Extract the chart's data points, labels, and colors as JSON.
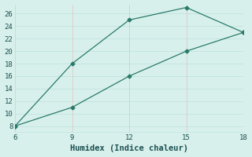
{
  "xlabel": "Humidex (Indice chaleur)",
  "x_upper": [
    6,
    9,
    12,
    15,
    18
  ],
  "y_upper": [
    8,
    18,
    25,
    27,
    23
  ],
  "x_lower": [
    6,
    9,
    12,
    15,
    18
  ],
  "y_lower": [
    8,
    11,
    16,
    20,
    23
  ],
  "line_color": "#2a7a6a",
  "marker": "D",
  "marker_size": 2.5,
  "xlim": [
    6,
    18
  ],
  "ylim": [
    7,
    27.5
  ],
  "xticks": [
    6,
    9,
    12,
    15,
    18
  ],
  "yticks": [
    8,
    10,
    12,
    14,
    16,
    18,
    20,
    22,
    24,
    26
  ],
  "bg_color": "#d8f0ec",
  "hgrid_color": "#c0e4de",
  "vgrid_color": "#e0c8c8",
  "font_color": "#1a5050",
  "label_fontsize": 7.5,
  "tick_fontsize": 6.5
}
